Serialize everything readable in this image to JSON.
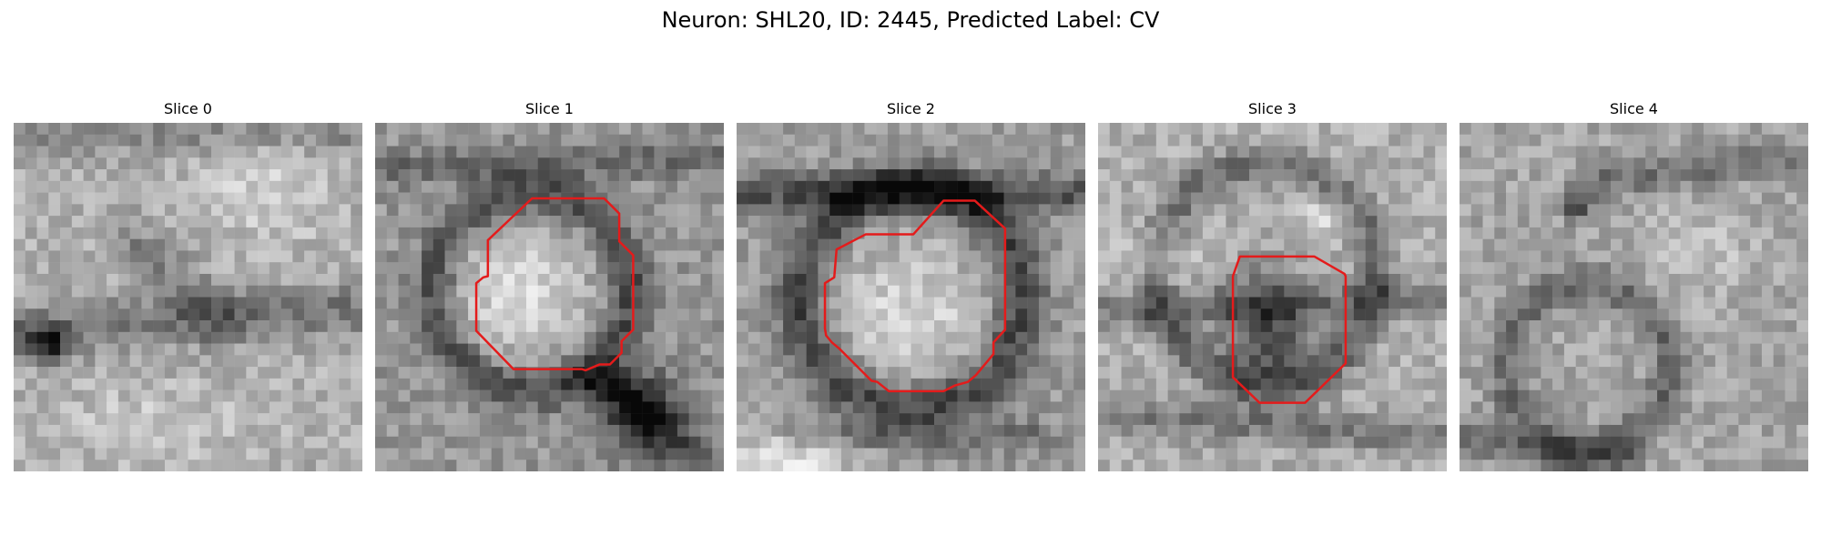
{
  "figure": {
    "title": "Neuron: SHL20, ID: 2445, Predicted Label: CV"
  },
  "panels": [
    {
      "label": "Slice 0",
      "has_contour": false
    },
    {
      "label": "Slice 1",
      "has_contour": true
    },
    {
      "label": "Slice 2",
      "has_contour": true
    },
    {
      "label": "Slice 3",
      "has_contour": true
    },
    {
      "label": "Slice 4",
      "has_contour": false
    }
  ],
  "colors": {
    "contour": "#e41b1b",
    "background": "#ffffff",
    "colormap": "grayscale"
  }
}
